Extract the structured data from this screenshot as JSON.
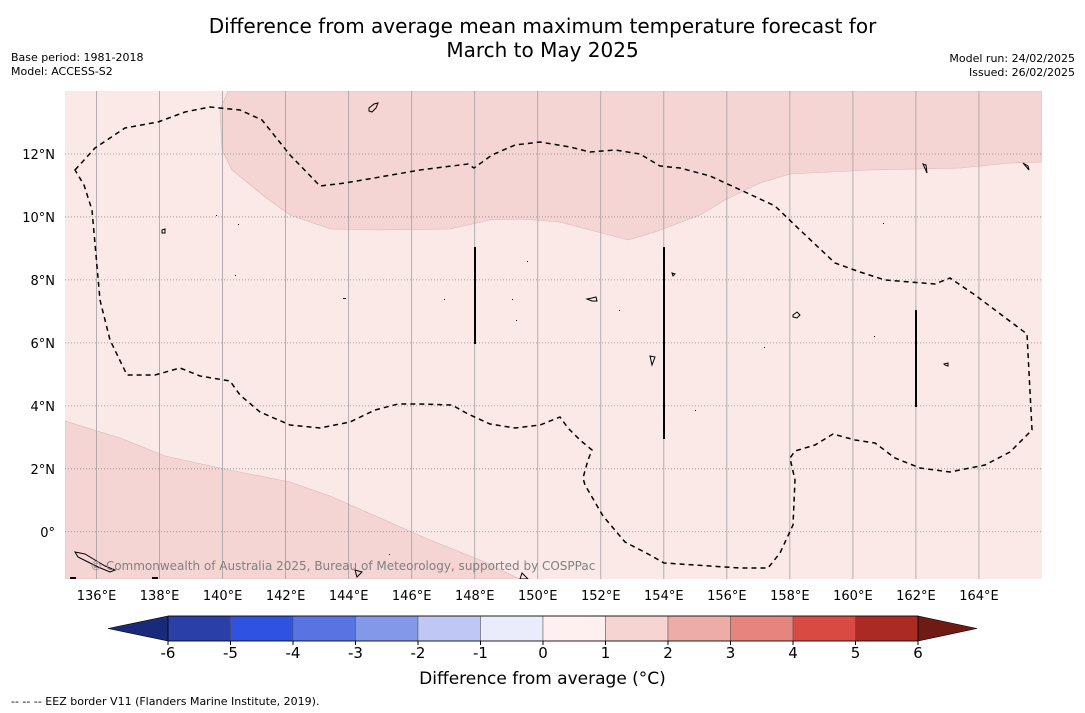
{
  "title_line1": "Difference from average mean maximum temperature forecast for",
  "title_line2": "March to May 2025",
  "meta_left": {
    "base_period": "Base period: 1981-2018",
    "model": "Model: ACCESS-S2"
  },
  "meta_right": {
    "model_run": "Model run: 24/02/2025",
    "issued": "Issued: 26/02/2025"
  },
  "map": {
    "lon_range": [
      135,
      166
    ],
    "lat_range": [
      -1.5,
      14
    ],
    "lon_ticks": [
      "136°E",
      "138°E",
      "140°E",
      "142°E",
      "144°E",
      "146°E",
      "148°E",
      "150°E",
      "152°E",
      "154°E",
      "156°E",
      "158°E",
      "160°E",
      "162°E",
      "164°E"
    ],
    "lon_values": [
      136,
      138,
      140,
      142,
      144,
      146,
      148,
      150,
      152,
      154,
      156,
      158,
      160,
      162,
      164
    ],
    "lat_ticks": [
      "0°",
      "2°N",
      "4°N",
      "6°N",
      "8°N",
      "10°N",
      "12°N"
    ],
    "lat_values": [
      0,
      2,
      4,
      6,
      8,
      10,
      12
    ],
    "copyright": "© Commonwealth of Australia 2025, Bureau of Meteorology, supported by COSPPac",
    "colors": {
      "anomaly_0_1": "#fbe9e8",
      "anomaly_1_2": "#f5d5d3",
      "eez_line": "#000000",
      "grid": "#888888"
    }
  },
  "colorbar": {
    "label": "Difference from average (°C)",
    "ticks": [
      "-6",
      "-5",
      "-4",
      "-3",
      "-2",
      "-1",
      "0",
      "1",
      "2",
      "3",
      "4",
      "5",
      "6"
    ],
    "colors": [
      "#2a3fa7",
      "#2f53e0",
      "#5874e3",
      "#8498ea",
      "#bfc7f4",
      "#ebecfb",
      "#fdf0ef",
      "#f6d4d1",
      "#eeaca7",
      "#e6847e",
      "#d94a42",
      "#ab2a24"
    ],
    "under_color": "#1a2a7a",
    "over_color": "#701a14"
  },
  "footnote": "--  --  -- EEZ border V11 (Flanders Marine Institute, 2019)."
}
